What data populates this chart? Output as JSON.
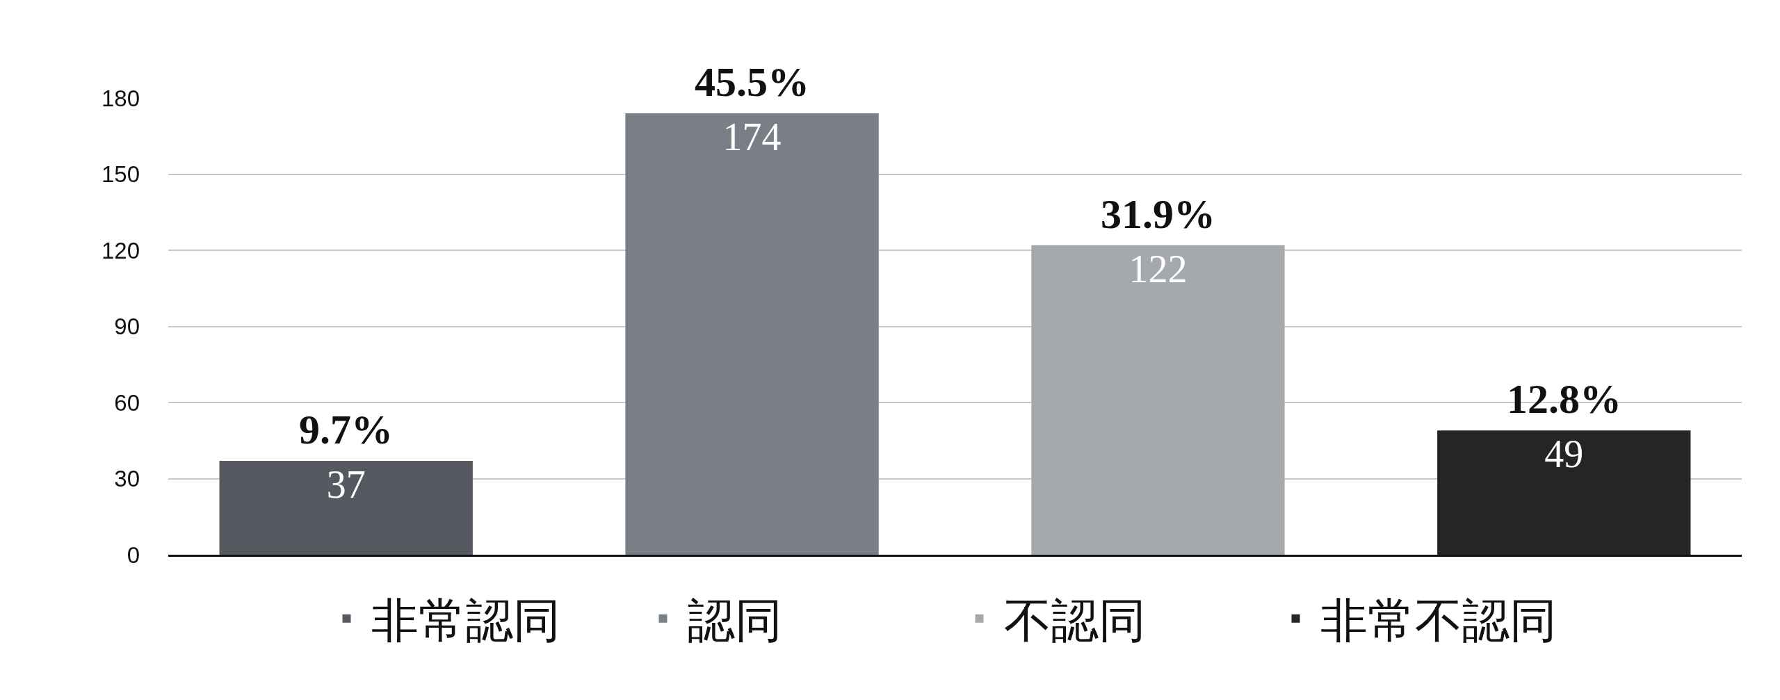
{
  "chart_data": {
    "type": "bar",
    "categories": [
      null
    ],
    "series": [
      {
        "name": "非常認同",
        "color": "#565a60",
        "values": [
          37
        ]
      },
      {
        "name": "認同",
        "color": "#7a7f87",
        "values": [
          174
        ]
      },
      {
        "name": "不認同",
        "color": "#a6a9ac",
        "values": [
          122
        ]
      },
      {
        "name": "非常不認同",
        "color": "#242526",
        "values": [
          49
        ]
      }
    ],
    "annotations": [
      {
        "text": "9.7%",
        "y": 37
      },
      {
        "text": "45.5%",
        "y": 174
      },
      {
        "text": "31.9%",
        "y": 122
      },
      {
        "text": "12.8%",
        "y": 49
      }
    ],
    "ylim": [
      0,
      180
    ],
    "yticks": [
      0,
      30,
      60,
      90,
      120,
      150,
      180
    ],
    "grid": "y",
    "legend": "bottom",
    "tick_labels": "y",
    "data_labels": true
  }
}
